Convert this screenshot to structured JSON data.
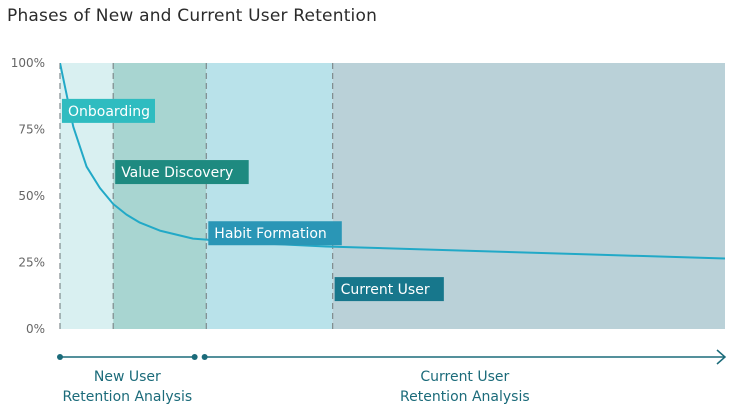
{
  "chart_data": {
    "type": "line",
    "title": "Phases of New and Current User Retention",
    "ylim": [
      0,
      100
    ],
    "y_ticks": [
      "0%",
      "25%",
      "50%",
      "75%",
      "100%"
    ],
    "series": [
      {
        "name": "Retention",
        "x": [
          0,
          1,
          2,
          4,
          6,
          8,
          10,
          12,
          15,
          20,
          28,
          40,
          60,
          80,
          100
        ],
        "values": [
          100,
          88,
          76,
          61,
          53,
          47,
          43,
          40,
          37,
          34,
          32.5,
          31,
          29.5,
          28,
          26.5
        ]
      }
    ],
    "phases": [
      {
        "label": "Onboarding",
        "x_start": 0,
        "x_end": 8,
        "color": "#d9f0f1",
        "label_color": "#2fbcc0",
        "label_y": 82
      },
      {
        "label": "Value Discovery",
        "x_start": 8,
        "x_end": 22,
        "color": "#a8d5d1",
        "label_color": "#1e8a80",
        "label_y": 59
      },
      {
        "label": "Habit Formation",
        "x_start": 22,
        "x_end": 41,
        "color": "#b9e2ea",
        "label_color": "#2a96b6",
        "label_y": 36
      },
      {
        "label": "Current User",
        "x_start": 41,
        "x_end": 100,
        "color": "#bad1d8",
        "label_color": "#17778c",
        "label_y": 15
      }
    ],
    "bottom_labels": [
      {
        "lines": [
          "New User",
          "Retention Analysis"
        ],
        "x_start": 0,
        "x_end": 21
      },
      {
        "lines": [
          "Current User",
          "Retention Analysis"
        ],
        "x_start": 21,
        "x_end": 100
      }
    ]
  }
}
